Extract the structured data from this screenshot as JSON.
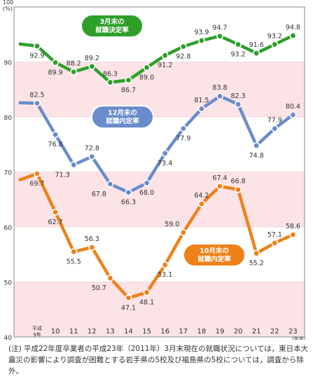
{
  "chart_data": {
    "type": "line",
    "y_unit_label": "100\n(%)",
    "ylim": [
      40,
      100
    ],
    "y_ticks": [
      40,
      50,
      60,
      70,
      80,
      90
    ],
    "x_ticks": [
      "平成\n9年",
      "10",
      "11",
      "12",
      "13",
      "14",
      "15",
      "16",
      "17",
      "18",
      "19",
      "20",
      "21",
      "22",
      "23"
    ],
    "x_unit_label": "(年度)",
    "series": [
      {
        "name": "3月末の\n就職決定率",
        "color": "#2ea02a",
        "x": [
          "8",
          "9",
          "10",
          "11",
          "12",
          "13",
          "14",
          "15",
          "16",
          "17",
          "18",
          "19",
          "20",
          "21",
          "22",
          "23"
        ],
        "values": [
          93.3,
          92.9,
          89.9,
          88.2,
          89.2,
          86.3,
          86.7,
          89.0,
          91.2,
          92.8,
          93.9,
          94.7,
          93.2,
          91.6,
          93.2,
          94.8
        ],
        "labels": [
          "",
          "92.9",
          "89.9",
          "88.2",
          "89.2",
          "86.3",
          "86.7",
          "89.0",
          "91.2",
          "92.8",
          "93.9",
          "94.7",
          "93.2",
          "91.6",
          "93.2",
          "94.8"
        ]
      },
      {
        "name": "12月末の\n就職内定率",
        "color": "#6b8ccb",
        "x": [
          "8",
          "9",
          "10",
          "11",
          "12",
          "13",
          "14",
          "15",
          "16",
          "17",
          "18",
          "19",
          "20",
          "21",
          "22",
          "23"
        ],
        "values": [
          82.6,
          82.5,
          76.8,
          71.3,
          72.8,
          67.8,
          66.3,
          68.0,
          73.4,
          77.9,
          81.5,
          83.8,
          82.3,
          74.8,
          77.9,
          80.4
        ],
        "labels": [
          "",
          "82.5",
          "76.8",
          "71.3",
          "72.8",
          "67.8",
          "66.3",
          "68.0",
          "73.4",
          "77.9",
          "81.5",
          "83.8",
          "82.3",
          "74.8",
          "77.9",
          "80.4"
        ]
      },
      {
        "name": "10月末の\n就職内定率",
        "color": "#ef8119",
        "x": [
          "8",
          "9",
          "10",
          "11",
          "12",
          "13",
          "14",
          "15",
          "16",
          "17",
          "18",
          "19",
          "20",
          "21",
          "22",
          "23"
        ],
        "values": [
          68.5,
          69.7,
          62.7,
          55.5,
          56.3,
          50.7,
          47.1,
          48.1,
          53.1,
          59.0,
          64.2,
          67.4,
          66.8,
          55.2,
          57.1,
          58.6
        ],
        "labels": [
          "",
          "69.7",
          "62.7",
          "55.5",
          "56.3",
          "50.7",
          "47.1",
          "48.1",
          "53.1",
          "59.0",
          "64.2",
          "67.4",
          "66.8",
          "55.2",
          "57.1",
          "58.6"
        ]
      }
    ],
    "grid": "alternating bands",
    "band_color": "#fbe3e6"
  },
  "note": "(注) 平成22年度卒業者の平成23年（2011年）3月末現在の就職状況については，東日本大震災の影響により調査が困難とする岩手県の5校及び福島県の5校については，調査から除外。"
}
